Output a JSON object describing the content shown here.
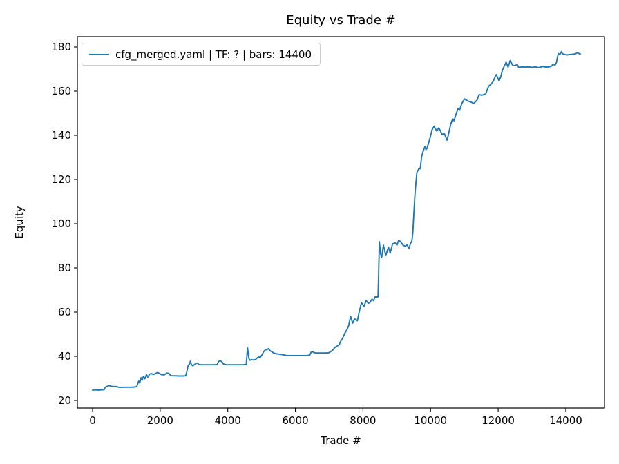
{
  "figure": {
    "background": "#ffffff",
    "text_color": "#000000"
  },
  "chart_data": {
    "type": "line",
    "title": "Equity vs Trade #",
    "xlabel": "Trade #",
    "ylabel": "Equity",
    "grid": false,
    "xlim": [
      -450,
      15146
    ],
    "ylim": [
      16.56,
      184.69
    ],
    "xticks": [
      0,
      2000,
      4000,
      6000,
      8000,
      10000,
      12000,
      14000
    ],
    "yticks": [
      20,
      40,
      60,
      80,
      100,
      120,
      140,
      160,
      180
    ],
    "legend": {
      "position": "upper left",
      "entries": [
        {
          "label": "cfg_merged.yaml | TF: ? | bars: 14400",
          "color": "#1f77b4"
        }
      ]
    },
    "series": [
      {
        "name": "cfg_merged.yaml | TF: ? | bars: 14400",
        "color": "#1f77b4",
        "line_width": 1.9,
        "points": [
          [
            0,
            24.7
          ],
          [
            90,
            24.8
          ],
          [
            180,
            24.7
          ],
          [
            270,
            24.8
          ],
          [
            340,
            24.8
          ],
          [
            375,
            26.0
          ],
          [
            430,
            26.4
          ],
          [
            485,
            26.8
          ],
          [
            545,
            26.4
          ],
          [
            625,
            26.3
          ],
          [
            705,
            26.3
          ],
          [
            790,
            25.9
          ],
          [
            890,
            26.0
          ],
          [
            1010,
            26.0
          ],
          [
            1130,
            26.0
          ],
          [
            1250,
            26.1
          ],
          [
            1305,
            26.3
          ],
          [
            1335,
            27.5
          ],
          [
            1365,
            28.8
          ],
          [
            1395,
            27.9
          ],
          [
            1435,
            30.3
          ],
          [
            1465,
            29.2
          ],
          [
            1505,
            30.9
          ],
          [
            1545,
            29.8
          ],
          [
            1595,
            31.7
          ],
          [
            1635,
            30.6
          ],
          [
            1685,
            31.9
          ],
          [
            1735,
            32.2
          ],
          [
            1795,
            31.8
          ],
          [
            1855,
            32.1
          ],
          [
            1915,
            32.7
          ],
          [
            1975,
            32.3
          ],
          [
            2035,
            31.7
          ],
          [
            2115,
            31.6
          ],
          [
            2195,
            32.4
          ],
          [
            2255,
            32.3
          ],
          [
            2315,
            31.2
          ],
          [
            2430,
            31.2
          ],
          [
            2550,
            31.1
          ],
          [
            2670,
            31.1
          ],
          [
            2755,
            31.2
          ],
          [
            2795,
            33.5
          ],
          [
            2825,
            35.8
          ],
          [
            2865,
            36.5
          ],
          [
            2895,
            37.8
          ],
          [
            2925,
            36.2
          ],
          [
            2965,
            35.7
          ],
          [
            3015,
            36.3
          ],
          [
            3075,
            36.8
          ],
          [
            3105,
            37.0
          ],
          [
            3145,
            36.3
          ],
          [
            3225,
            36.2
          ],
          [
            3345,
            36.2
          ],
          [
            3465,
            36.2
          ],
          [
            3585,
            36.2
          ],
          [
            3685,
            36.3
          ],
          [
            3725,
            37.6
          ],
          [
            3765,
            38.1
          ],
          [
            3825,
            37.5
          ],
          [
            3875,
            36.5
          ],
          [
            3955,
            36.2
          ],
          [
            4075,
            36.2
          ],
          [
            4195,
            36.2
          ],
          [
            4315,
            36.2
          ],
          [
            4435,
            36.2
          ],
          [
            4545,
            36.3
          ],
          [
            4585,
            43.8
          ],
          [
            4625,
            39.0
          ],
          [
            4665,
            38.2
          ],
          [
            4705,
            38.5
          ],
          [
            4765,
            38.3
          ],
          [
            4825,
            38.6
          ],
          [
            4875,
            39.3
          ],
          [
            4915,
            39.8
          ],
          [
            4955,
            39.4
          ],
          [
            5005,
            40.5
          ],
          [
            5055,
            41.9
          ],
          [
            5105,
            42.9
          ],
          [
            5155,
            43.0
          ],
          [
            5205,
            43.5
          ],
          [
            5255,
            42.5
          ],
          [
            5305,
            42.0
          ],
          [
            5355,
            41.5
          ],
          [
            5425,
            41.2
          ],
          [
            5505,
            41.0
          ],
          [
            5605,
            40.8
          ],
          [
            5725,
            40.4
          ],
          [
            5845,
            40.3
          ],
          [
            5965,
            40.3
          ],
          [
            6085,
            40.3
          ],
          [
            6205,
            40.3
          ],
          [
            6325,
            40.3
          ],
          [
            6425,
            40.5
          ],
          [
            6465,
            41.8
          ],
          [
            6505,
            42.2
          ],
          [
            6545,
            41.7
          ],
          [
            6625,
            41.5
          ],
          [
            6745,
            41.5
          ],
          [
            6865,
            41.5
          ],
          [
            6985,
            41.6
          ],
          [
            7045,
            42.1
          ],
          [
            7105,
            42.8
          ],
          [
            7165,
            43.9
          ],
          [
            7225,
            44.6
          ],
          [
            7295,
            45.2
          ],
          [
            7345,
            46.9
          ],
          [
            7395,
            48.1
          ],
          [
            7455,
            50.2
          ],
          [
            7535,
            52.3
          ],
          [
            7575,
            53.8
          ],
          [
            7635,
            58.1
          ],
          [
            7695,
            55.0
          ],
          [
            7755,
            57.0
          ],
          [
            7835,
            56.1
          ],
          [
            7895,
            60.6
          ],
          [
            7955,
            64.3
          ],
          [
            8035,
            62.7
          ],
          [
            8095,
            65.3
          ],
          [
            8155,
            64.0
          ],
          [
            8205,
            64.3
          ],
          [
            8265,
            65.9
          ],
          [
            8315,
            65.2
          ],
          [
            8355,
            66.9
          ],
          [
            8445,
            66.9
          ],
          [
            8462,
            76.0
          ],
          [
            8475,
            84.0
          ],
          [
            8485,
            91.9
          ],
          [
            8525,
            86.0
          ],
          [
            8555,
            84.7
          ],
          [
            8605,
            90.3
          ],
          [
            8675,
            85.6
          ],
          [
            8755,
            89.4
          ],
          [
            8805,
            86.7
          ],
          [
            8875,
            90.9
          ],
          [
            8955,
            91.3
          ],
          [
            9005,
            90.3
          ],
          [
            9055,
            92.5
          ],
          [
            9115,
            91.9
          ],
          [
            9185,
            90.3
          ],
          [
            9255,
            89.8
          ],
          [
            9305,
            90.5
          ],
          [
            9365,
            88.8
          ],
          [
            9405,
            91.0
          ],
          [
            9445,
            92.0
          ],
          [
            9475,
            95.9
          ],
          [
            9505,
            104.4
          ],
          [
            9525,
            109.7
          ],
          [
            9545,
            114.7
          ],
          [
            9575,
            120.0
          ],
          [
            9595,
            123.1
          ],
          [
            9645,
            124.7
          ],
          [
            9695,
            124.9
          ],
          [
            9735,
            130.3
          ],
          [
            9775,
            132.5
          ],
          [
            9835,
            135.0
          ],
          [
            9865,
            133.5
          ],
          [
            9895,
            134.1
          ],
          [
            9985,
            138.8
          ],
          [
            10045,
            142.5
          ],
          [
            10105,
            144.1
          ],
          [
            10185,
            141.9
          ],
          [
            10245,
            143.4
          ],
          [
            10345,
            140.3
          ],
          [
            10405,
            140.9
          ],
          [
            10485,
            137.8
          ],
          [
            10515,
            139.4
          ],
          [
            10595,
            145.0
          ],
          [
            10655,
            147.5
          ],
          [
            10695,
            146.6
          ],
          [
            10755,
            149.7
          ],
          [
            10815,
            152.2
          ],
          [
            10855,
            151.3
          ],
          [
            10925,
            154.4
          ],
          [
            11005,
            156.5
          ],
          [
            11105,
            155.5
          ],
          [
            11205,
            155.0
          ],
          [
            11275,
            154.4
          ],
          [
            11375,
            155.9
          ],
          [
            11435,
            158.4
          ],
          [
            11525,
            158.2
          ],
          [
            11635,
            158.8
          ],
          [
            11715,
            162.2
          ],
          [
            11785,
            163.1
          ],
          [
            11855,
            164.5
          ],
          [
            11895,
            166.0
          ],
          [
            11945,
            167.5
          ],
          [
            12025,
            164.7
          ],
          [
            12075,
            166.5
          ],
          [
            12125,
            169.4
          ],
          [
            12185,
            171.5
          ],
          [
            12235,
            173.1
          ],
          [
            12295,
            170.9
          ],
          [
            12355,
            173.8
          ],
          [
            12435,
            171.6
          ],
          [
            12495,
            171.6
          ],
          [
            12565,
            172.0
          ],
          [
            12605,
            170.8
          ],
          [
            12705,
            171.0
          ],
          [
            12805,
            170.9
          ],
          [
            12905,
            171.0
          ],
          [
            13005,
            170.8
          ],
          [
            13105,
            171.0
          ],
          [
            13205,
            170.7
          ],
          [
            13305,
            171.2
          ],
          [
            13405,
            170.9
          ],
          [
            13505,
            171.0
          ],
          [
            13575,
            171.3
          ],
          [
            13625,
            172.2
          ],
          [
            13685,
            171.8
          ],
          [
            13725,
            173.0
          ],
          [
            13755,
            175.5
          ],
          [
            13785,
            177.0
          ],
          [
            13825,
            176.5
          ],
          [
            13865,
            177.8
          ],
          [
            13905,
            176.9
          ],
          [
            13965,
            176.6
          ],
          [
            14045,
            176.4
          ],
          [
            14125,
            176.6
          ],
          [
            14205,
            176.7
          ],
          [
            14285,
            176.9
          ],
          [
            14345,
            177.4
          ],
          [
            14405,
            176.9
          ],
          [
            14430,
            176.8
          ]
        ]
      }
    ]
  }
}
